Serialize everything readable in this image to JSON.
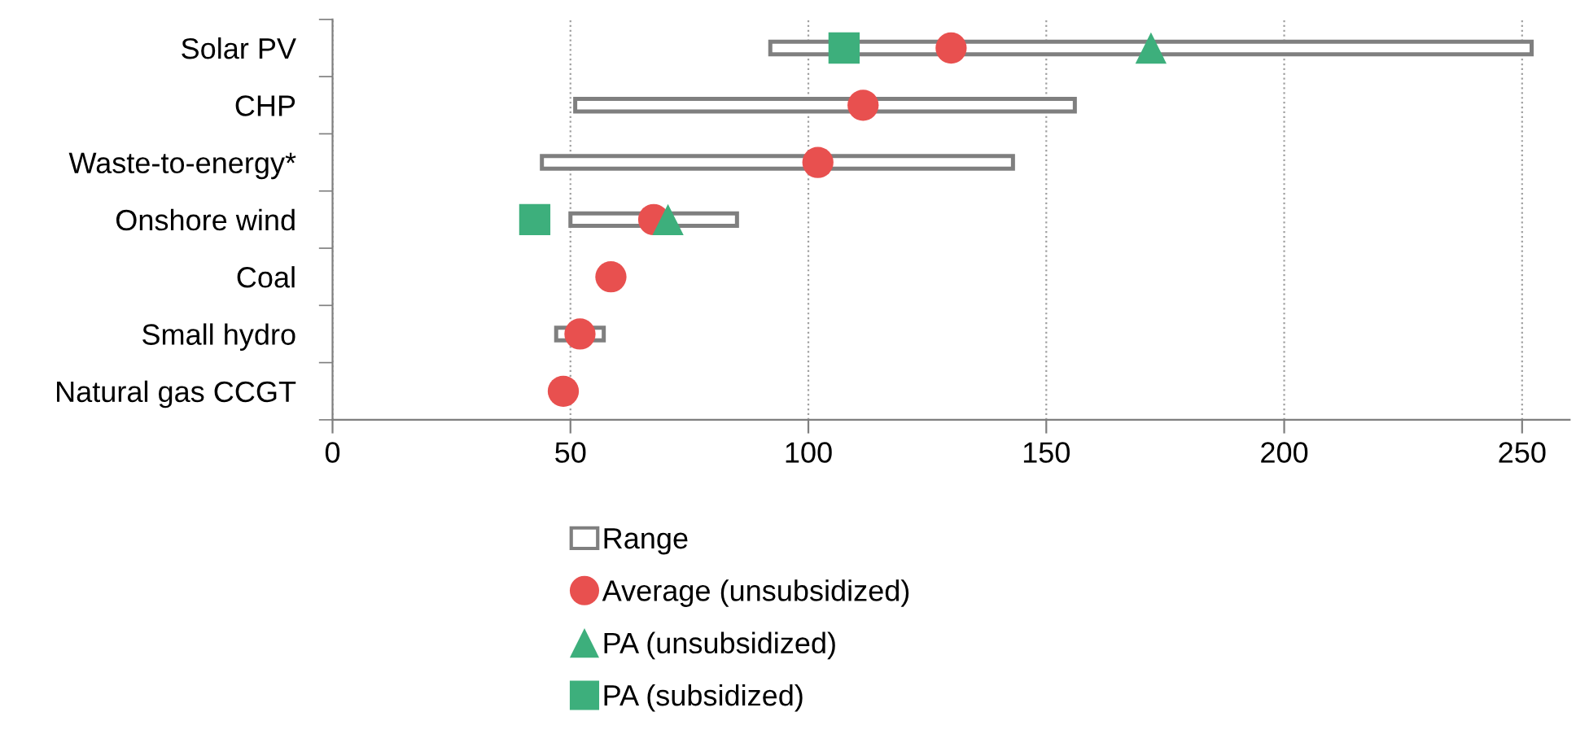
{
  "chart_data": {
    "type": "bar",
    "orientation": "horizontal",
    "categories": [
      "Solar PV",
      "CHP",
      "Waste-to-energy*",
      "Onshore wind",
      "Coal",
      "Small hydro",
      "Natural gas CCGT"
    ],
    "series": [
      {
        "name": "Range",
        "color": "#7f7f7f",
        "base": [
          92,
          51,
          44,
          50,
          null,
          47,
          null
        ],
        "values": [
          160,
          105,
          99,
          35,
          null,
          10,
          null
        ]
      },
      {
        "name": "Average (unsubsidized)",
        "type": "scatter",
        "marker": "circle",
        "color": "#e8504f",
        "values": [
          130,
          111.5,
          102,
          67.5,
          58.5,
          52,
          48.5
        ]
      },
      {
        "name": "PA (unsubsidized)",
        "type": "scatter",
        "marker": "triangle",
        "color": "#3daf7c",
        "values": [
          172,
          null,
          null,
          70.5,
          null,
          null,
          null
        ]
      },
      {
        "name": "PA (subsidized)",
        "type": "scatter",
        "marker": "square",
        "color": "#3daf7c",
        "values": [
          107.5,
          null,
          null,
          42.5,
          null,
          null,
          null
        ]
      }
    ],
    "xlim": [
      0,
      260
    ],
    "xticks": [
      0,
      50,
      100,
      150,
      200,
      250
    ],
    "grid": "x",
    "legend": "bottom"
  }
}
